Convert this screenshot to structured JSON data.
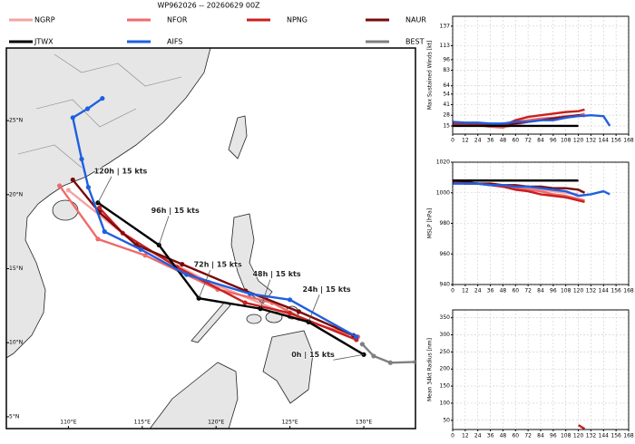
{
  "title": "WP962026 -- 20260629 00Z",
  "chart_data": [
    {
      "type": "map",
      "xlim": [
        105.8,
        133.5
      ],
      "ylim": [
        4.2,
        29.9
      ],
      "xticks": [
        {
          "value": 110,
          "label": "110°E"
        },
        {
          "value": 115,
          "label": "115°E"
        },
        {
          "value": 120,
          "label": "120°E"
        },
        {
          "value": 125,
          "label": "125°E"
        },
        {
          "value": 130,
          "label": "130°E"
        }
      ],
      "yticks": [
        {
          "value": 5,
          "label": "5°N"
        },
        {
          "value": 10,
          "label": "10°N"
        },
        {
          "value": 15,
          "label": "15°N"
        },
        {
          "value": 20,
          "label": "20°N"
        },
        {
          "value": 25,
          "label": "25°N"
        }
      ],
      "series": [
        {
          "name": "NGRP",
          "color": "#f4a3a3",
          "x": [
            129.6,
            125.6,
            119.5,
            114.6,
            110.0
          ],
          "values": [
            10.4,
            11.6,
            14.1,
            16.65,
            20.3
          ]
        },
        {
          "name": "NFOR",
          "color": "#f06a6a",
          "x": [
            129.6,
            126.26,
            123.8,
            120.1,
            115.2,
            112.0,
            109.4
          ],
          "values": [
            10.4,
            11.4,
            12.7,
            13.6,
            15.9,
            17.0,
            20.6
          ]
        },
        {
          "name": "NPNG",
          "color": "#c8201f",
          "x": [
            129.5,
            125.0,
            121.96,
            117.36,
            113.68,
            112.1
          ],
          "values": [
            10.2,
            12.0,
            12.7,
            15.1,
            17.4,
            19.1
          ]
        },
        {
          "name": "NAUR",
          "color": "#7a0a0a",
          "x": [
            129.3,
            125.6,
            122.0,
            117.7,
            114.6,
            112.1,
            110.3
          ],
          "values": [
            10.5,
            12.1,
            13.5,
            15.3,
            16.6,
            18.8,
            21.0
          ]
        },
        {
          "name": "JTWX",
          "color": "#000000",
          "x": [
            130.0,
            126.26,
            123.0,
            118.83,
            116.13,
            112.0
          ],
          "values": [
            9.2,
            11.4,
            12.3,
            13.0,
            16.6,
            19.45
          ]
        },
        {
          "name": "AIFS",
          "color": "#1f5fe0",
          "x": [
            129.5,
            125.0,
            122.3,
            118.0,
            114.9,
            112.45,
            111.35,
            110.9,
            110.3,
            111.3,
            112.3
          ],
          "values": [
            10.4,
            12.9,
            13.3,
            14.6,
            16.3,
            17.5,
            20.5,
            22.4,
            25.2,
            25.8,
            26.5
          ]
        },
        {
          "name": "BEST",
          "color": "#808080",
          "x": [
            133.5,
            131.8,
            130.67,
            129.9
          ],
          "values": [
            8.7,
            8.65,
            9.1,
            9.9
          ]
        }
      ],
      "annotations": [
        {
          "text": "120h | 15 kts",
          "x": 112.0,
          "y": 19.45
        },
        {
          "text": "96h | 15 kts",
          "x": 116.13,
          "y": 16.6
        },
        {
          "text": "72h | 15 kts",
          "x": 118.83,
          "y": 13.0
        },
        {
          "text": "48h | 15 kts",
          "x": 123.0,
          "y": 12.3
        },
        {
          "text": "24h | 15 kts",
          "x": 126.26,
          "y": 11.4
        },
        {
          "text": "0h | 15 kts",
          "x": 130.0,
          "y": 9.2
        }
      ]
    },
    {
      "type": "line",
      "y_label": "Max Sustained Winds [kt]",
      "xlim": [
        0,
        168
      ],
      "xticks": [
        0,
        12,
        24,
        36,
        48,
        60,
        72,
        84,
        96,
        108,
        120,
        132,
        144,
        156,
        168
      ],
      "ylim": [
        5,
        149
      ],
      "yticks": [
        15,
        28,
        41,
        54,
        64,
        83,
        96,
        113,
        137
      ],
      "grid": true,
      "series": [
        {
          "name": "NGRP",
          "x": [
            0,
            24,
            48,
            72,
            96,
            120
          ],
          "values": [
            17,
            16,
            13,
            20,
            24,
            28
          ]
        },
        {
          "name": "NFOR",
          "x": [
            0,
            12,
            24,
            36,
            48,
            60,
            72,
            84,
            96,
            108,
            120,
            126
          ],
          "values": [
            17,
            17,
            16,
            14,
            13,
            20,
            22,
            24,
            25,
            27,
            28,
            30
          ]
        },
        {
          "name": "NAUR",
          "x": [
            0,
            12,
            24,
            36,
            48,
            60,
            72,
            84,
            96,
            108,
            120,
            126
          ],
          "values": [
            18,
            18,
            17,
            16,
            16,
            18,
            20,
            22,
            24,
            26,
            28,
            27
          ]
        },
        {
          "name": "NPNG",
          "x": [
            0,
            12,
            24,
            36,
            48,
            60,
            72,
            84,
            96,
            108,
            120,
            126
          ],
          "values": [
            18,
            18,
            17,
            16,
            15,
            22,
            26,
            28,
            30,
            32,
            33,
            35
          ]
        },
        {
          "name": "AIFS",
          "x": [
            0,
            12,
            24,
            36,
            48,
            60,
            72,
            84,
            96,
            108,
            120,
            132,
            144,
            150
          ],
          "values": [
            20,
            19,
            19,
            18,
            18,
            20,
            20,
            22,
            22,
            25,
            27,
            28,
            27,
            15
          ]
        },
        {
          "name": "JTWX",
          "x": [
            0,
            24,
            48,
            72,
            96,
            120
          ],
          "values": [
            15,
            15,
            15,
            15,
            15,
            15
          ]
        }
      ]
    },
    {
      "type": "line",
      "y_label": "MSLP [hPa]",
      "xlim": [
        0,
        168
      ],
      "xticks": [
        0,
        12,
        24,
        36,
        48,
        60,
        72,
        84,
        96,
        108,
        120,
        132,
        144,
        156,
        168
      ],
      "ylim": [
        940,
        1020
      ],
      "yticks": [
        940,
        960,
        980,
        1000,
        1020
      ],
      "grid": true,
      "series": [
        {
          "name": "NGRP",
          "x": [
            0,
            24,
            48,
            72,
            96,
            120
          ],
          "values": [
            1007,
            1006,
            1005,
            1003,
            1001,
            999
          ]
        },
        {
          "name": "NFOR",
          "x": [
            0,
            12,
            24,
            36,
            48,
            60,
            72,
            84,
            96,
            108,
            120,
            126
          ],
          "values": [
            1007,
            1006,
            1006,
            1005,
            1005,
            1003,
            1002,
            1001,
            999,
            998,
            996,
            995
          ]
        },
        {
          "name": "NAUR",
          "x": [
            0,
            12,
            24,
            36,
            48,
            60,
            72,
            84,
            96,
            108,
            120,
            126
          ],
          "values": [
            1007,
            1007,
            1006,
            1006,
            1005,
            1005,
            1004,
            1004,
            1003,
            1003,
            1002,
            1000
          ]
        },
        {
          "name": "NPNG",
          "x": [
            0,
            12,
            24,
            36,
            48,
            60,
            72,
            84,
            96,
            108,
            120,
            126
          ],
          "values": [
            1007,
            1006,
            1006,
            1005,
            1004,
            1002,
            1001,
            999,
            998,
            997,
            995,
            994
          ]
        },
        {
          "name": "AIFS",
          "x": [
            0,
            12,
            24,
            36,
            48,
            60,
            72,
            84,
            96,
            108,
            120,
            132,
            144,
            150
          ],
          "values": [
            1006,
            1006,
            1006,
            1005,
            1005,
            1004,
            1004,
            1003,
            1002,
            1001,
            998,
            999,
            1001,
            999
          ]
        },
        {
          "name": "JTWX",
          "x": [
            0,
            24,
            48,
            72,
            96,
            120
          ],
          "values": [
            1008,
            1008,
            1008,
            1008,
            1008,
            1008
          ]
        }
      ]
    },
    {
      "type": "line",
      "y_label": "Mean 34kt Radius [nm]",
      "xlim": [
        0,
        168
      ],
      "xticks": [
        0,
        12,
        24,
        36,
        48,
        60,
        72,
        84,
        96,
        108,
        120,
        132,
        144,
        156,
        168
      ],
      "ylim": [
        23,
        373
      ],
      "yticks": [
        50,
        100,
        150,
        200,
        250,
        300,
        350
      ],
      "grid": true,
      "series": [
        {
          "name": "NPNG",
          "x": [
            120,
            126
          ],
          "values": [
            36,
            25
          ]
        }
      ]
    }
  ]
}
